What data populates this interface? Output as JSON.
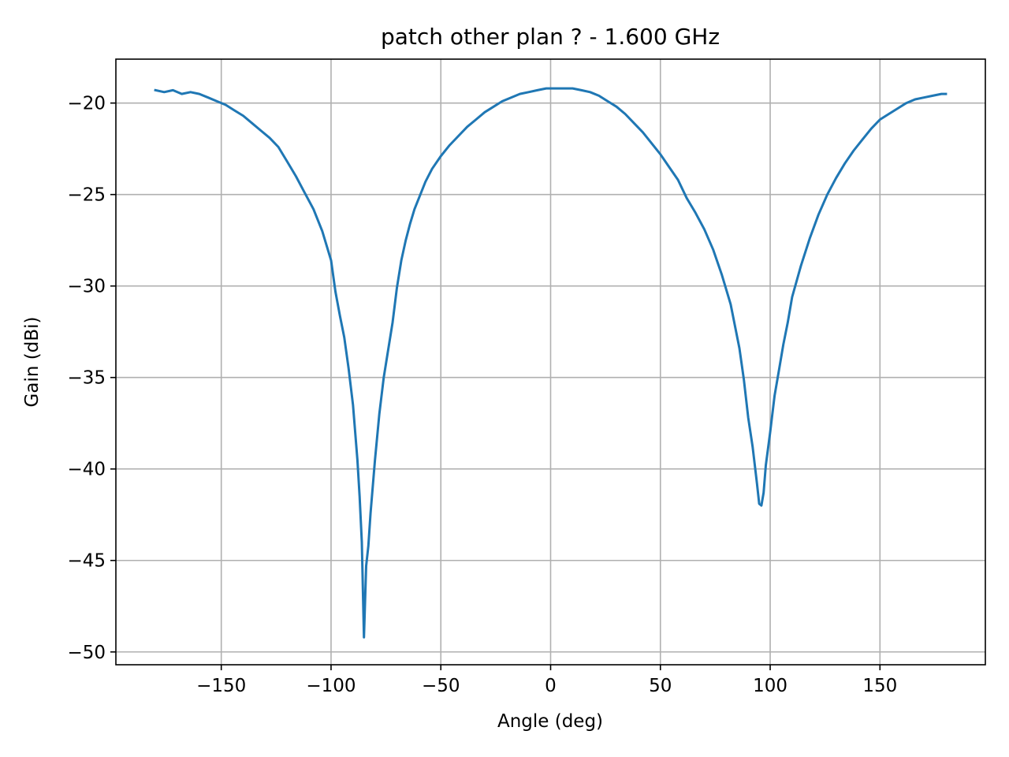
{
  "chart_data": {
    "type": "line",
    "title": "patch other plan ? - 1.600 GHz",
    "xlabel": "Angle (deg)",
    "ylabel": "Gain (dBi)",
    "xlim": [
      -198,
      198
    ],
    "ylim": [
      -50.7,
      -17.6
    ],
    "xticks": [
      -150,
      -100,
      -50,
      0,
      50,
      100,
      150
    ],
    "xtick_labels": [
      "−150",
      "−100",
      "−50",
      "0",
      "50",
      "100",
      "150"
    ],
    "yticks": [
      -50,
      -45,
      -40,
      -35,
      -30,
      -25,
      -20
    ],
    "ytick_labels": [
      "−50",
      "−45",
      "−40",
      "−35",
      "−30",
      "−25",
      "−20"
    ],
    "grid": true,
    "legend": "none",
    "series": [
      {
        "color": "#1f77b4",
        "points": [
          [
            -180,
            -19.3
          ],
          [
            -176,
            -19.4
          ],
          [
            -172,
            -19.3
          ],
          [
            -168,
            -19.5
          ],
          [
            -164,
            -19.4
          ],
          [
            -160,
            -19.5
          ],
          [
            -156,
            -19.7
          ],
          [
            -152,
            -19.9
          ],
          [
            -148,
            -20.1
          ],
          [
            -144,
            -20.4
          ],
          [
            -140,
            -20.7
          ],
          [
            -136,
            -21.1
          ],
          [
            -132,
            -21.5
          ],
          [
            -128,
            -21.9
          ],
          [
            -124,
            -22.4
          ],
          [
            -120,
            -23.2
          ],
          [
            -116,
            -24.0
          ],
          [
            -112,
            -24.9
          ],
          [
            -108,
            -25.8
          ],
          [
            -104,
            -27.0
          ],
          [
            -100,
            -28.6
          ],
          [
            -98,
            -30.3
          ],
          [
            -96,
            -31.6
          ],
          [
            -94,
            -32.8
          ],
          [
            -92,
            -34.5
          ],
          [
            -90,
            -36.5
          ],
          [
            -88,
            -39.5
          ],
          [
            -87,
            -41.5
          ],
          [
            -86,
            -44.0
          ],
          [
            -85,
            -49.2
          ],
          [
            -84,
            -45.3
          ],
          [
            -83,
            -44.2
          ],
          [
            -82,
            -42.4
          ],
          [
            -80,
            -39.5
          ],
          [
            -78,
            -37.0
          ],
          [
            -76,
            -35.0
          ],
          [
            -74,
            -33.5
          ],
          [
            -72,
            -32.0
          ],
          [
            -70,
            -30.1
          ],
          [
            -68,
            -28.6
          ],
          [
            -66,
            -27.5
          ],
          [
            -64,
            -26.6
          ],
          [
            -62,
            -25.8
          ],
          [
            -60,
            -25.2
          ],
          [
            -57,
            -24.3
          ],
          [
            -54,
            -23.6
          ],
          [
            -50,
            -22.9
          ],
          [
            -46,
            -22.3
          ],
          [
            -42,
            -21.8
          ],
          [
            -38,
            -21.3
          ],
          [
            -34,
            -20.9
          ],
          [
            -30,
            -20.5
          ],
          [
            -26,
            -20.2
          ],
          [
            -22,
            -19.9
          ],
          [
            -18,
            -19.7
          ],
          [
            -14,
            -19.5
          ],
          [
            -10,
            -19.4
          ],
          [
            -6,
            -19.3
          ],
          [
            -2,
            -19.2
          ],
          [
            2,
            -19.2
          ],
          [
            6,
            -19.2
          ],
          [
            10,
            -19.2
          ],
          [
            14,
            -19.3
          ],
          [
            18,
            -19.4
          ],
          [
            22,
            -19.6
          ],
          [
            26,
            -19.9
          ],
          [
            30,
            -20.2
          ],
          [
            34,
            -20.6
          ],
          [
            38,
            -21.1
          ],
          [
            42,
            -21.6
          ],
          [
            46,
            -22.2
          ],
          [
            50,
            -22.8
          ],
          [
            54,
            -23.5
          ],
          [
            58,
            -24.2
          ],
          [
            62,
            -25.2
          ],
          [
            66,
            -26.0
          ],
          [
            70,
            -26.9
          ],
          [
            74,
            -28.0
          ],
          [
            78,
            -29.4
          ],
          [
            82,
            -31.0
          ],
          [
            86,
            -33.4
          ],
          [
            88,
            -35.1
          ],
          [
            90,
            -37.2
          ],
          [
            92,
            -38.8
          ],
          [
            94,
            -40.8
          ],
          [
            95,
            -41.9
          ],
          [
            96,
            -42.0
          ],
          [
            97,
            -41.3
          ],
          [
            98,
            -39.8
          ],
          [
            100,
            -38.0
          ],
          [
            102,
            -36.0
          ],
          [
            104,
            -34.6
          ],
          [
            106,
            -33.2
          ],
          [
            108,
            -32.0
          ],
          [
            110,
            -30.6
          ],
          [
            114,
            -28.9
          ],
          [
            118,
            -27.4
          ],
          [
            122,
            -26.1
          ],
          [
            126,
            -25.0
          ],
          [
            130,
            -24.1
          ],
          [
            134,
            -23.3
          ],
          [
            138,
            -22.6
          ],
          [
            142,
            -22.0
          ],
          [
            146,
            -21.4
          ],
          [
            150,
            -20.9
          ],
          [
            154,
            -20.6
          ],
          [
            158,
            -20.3
          ],
          [
            162,
            -20.0
          ],
          [
            166,
            -19.8
          ],
          [
            170,
            -19.7
          ],
          [
            174,
            -19.6
          ],
          [
            178,
            -19.5
          ],
          [
            180,
            -19.5
          ]
        ]
      }
    ]
  }
}
